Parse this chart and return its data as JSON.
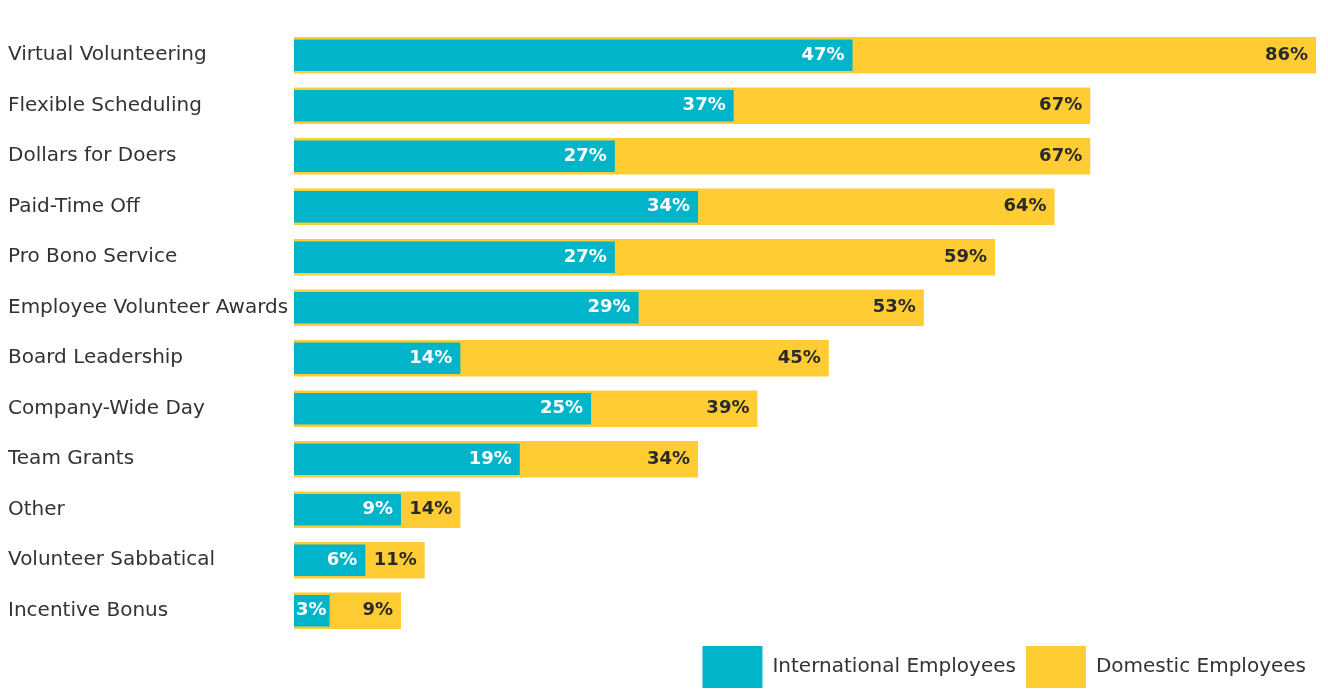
{
  "chart_data": {
    "type": "bar",
    "orientation": "horizontal",
    "legend": "bottom right",
    "categories": [
      "Virtual Volunteering",
      "Flexible Scheduling",
      "Dollars for Doers",
      "Paid-Time Off",
      "Pro Bono Service",
      "Employee Volunteer Awards",
      "Board Leadership",
      "Company-Wide Day",
      "Team Grants",
      "Other",
      "Volunteer Sabbatical",
      "Incentive Bonus"
    ],
    "series": [
      {
        "name": "International Employees",
        "color": "#00b5c9",
        "values": [
          47,
          37,
          27,
          34,
          27,
          29,
          14,
          25,
          19,
          9,
          6,
          3
        ],
        "value_labels": [
          "47%",
          "37%",
          "27%",
          "34%",
          "27%",
          "29%",
          "14%",
          "25%",
          "19%",
          "9%",
          "6%",
          "3%"
        ]
      },
      {
        "name": "Domestic Employees",
        "color": "#ffcd33",
        "values": [
          86,
          67,
          67,
          64,
          59,
          53,
          45,
          39,
          34,
          14,
          11,
          9
        ],
        "value_labels": [
          "86%",
          "67%",
          "67%",
          "64%",
          "59%",
          "53%",
          "45%",
          "39%",
          "34%",
          "14%",
          "11%",
          "9%"
        ]
      }
    ]
  }
}
